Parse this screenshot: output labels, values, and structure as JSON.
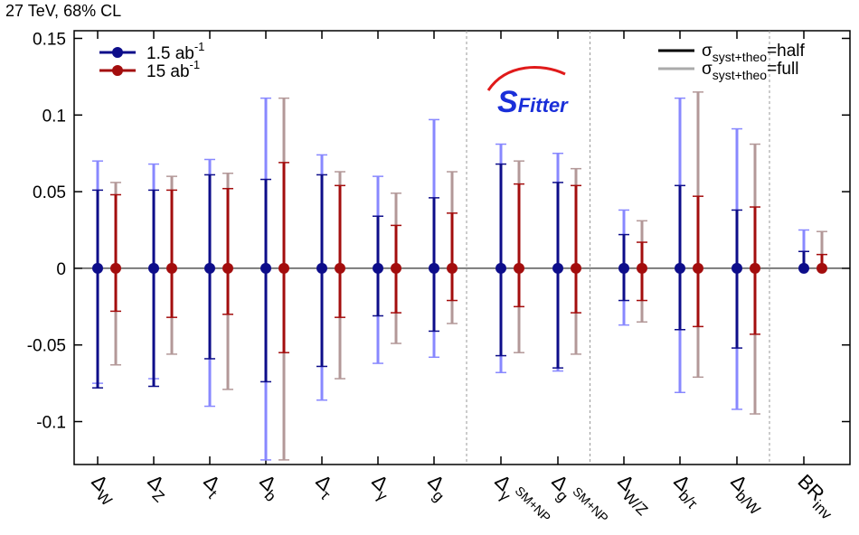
{
  "chart_data": {
    "type": "scatter",
    "subtitle": "27 TeV, 68% CL",
    "logo_text": "SFitter",
    "ylim": [
      -0.128,
      0.155
    ],
    "yticks": [
      0.15,
      0.1,
      0.05,
      0,
      -0.05,
      -0.1
    ],
    "ytick_labels": [
      "0.15",
      "0.1",
      "0.05",
      "0",
      "-0.05",
      "-0.1"
    ],
    "grid": false,
    "zero_line": true,
    "legend_left": [
      {
        "label": "1.5 ab",
        "sup": "-1",
        "color": "#0d0d8a"
      },
      {
        "label": "15 ab",
        "sup": "-1",
        "color": "#a30d0d"
      }
    ],
    "legend_right": [
      {
        "sym": "σ",
        "sub": "syst+theo",
        "rest": "=half",
        "color": "#000000"
      },
      {
        "sym": "σ",
        "sub": "syst+theo",
        "rest": "=full",
        "color": "#aaaaaa"
      }
    ],
    "categories": [
      {
        "label": "Δ",
        "sub": "W",
        "sup": ""
      },
      {
        "label": "Δ",
        "sub": "Z",
        "sup": ""
      },
      {
        "label": "Δ",
        "sub": "t",
        "sup": ""
      },
      {
        "label": "Δ",
        "sub": "b",
        "sup": ""
      },
      {
        "label": "Δ",
        "sub": "τ",
        "sup": ""
      },
      {
        "label": "Δ",
        "sub": "γ",
        "sup": ""
      },
      {
        "label": "Δ",
        "sub": "g",
        "sup": ""
      },
      {
        "label": "Δ",
        "sub": "γ",
        "sup": "SM+NP"
      },
      {
        "label": "Δ",
        "sub": "g",
        "sup": "SM+NP"
      },
      {
        "label": "Δ",
        "sub": "W/Z",
        "sup": ""
      },
      {
        "label": "Δ",
        "sub": "b/τ",
        "sup": ""
      },
      {
        "label": "Δ",
        "sub": "b/W",
        "sup": ""
      },
      {
        "label": "BR",
        "sub": "inv",
        "sup": ""
      }
    ],
    "group_separators_after": [
      6,
      8,
      11
    ],
    "series": [
      {
        "name": "1.5 ab-1",
        "color": "#0d0d8a",
        "full_color": "#8888ff",
        "values": [
          0,
          0,
          0,
          0,
          0,
          0,
          0,
          0,
          0,
          0,
          0,
          0,
          0
        ],
        "half": [
          [
            0.051,
            -0.078
          ],
          [
            0.051,
            -0.077
          ],
          [
            0.061,
            -0.059
          ],
          [
            0.058,
            -0.074
          ],
          [
            0.061,
            -0.064
          ],
          [
            0.034,
            -0.031
          ],
          [
            0.046,
            -0.041
          ],
          [
            0.068,
            -0.057
          ],
          [
            0.056,
            -0.065
          ],
          [
            0.022,
            -0.021
          ],
          [
            0.054,
            -0.04
          ],
          [
            0.038,
            -0.052
          ],
          [
            0.011,
            0
          ]
        ],
        "full": [
          [
            0.07,
            -0.075
          ],
          [
            0.068,
            -0.072
          ],
          [
            0.071,
            -0.09
          ],
          [
            0.111,
            -0.125
          ],
          [
            0.074,
            -0.086
          ],
          [
            0.06,
            -0.062
          ],
          [
            0.097,
            -0.058
          ],
          [
            0.081,
            -0.068
          ],
          [
            0.075,
            -0.067
          ],
          [
            0.038,
            -0.037
          ],
          [
            0.111,
            -0.081
          ],
          [
            0.091,
            -0.092
          ],
          [
            0.025,
            0
          ]
        ]
      },
      {
        "name": "15 ab-1",
        "color": "#a30d0d",
        "full_color": "#b39898",
        "values": [
          0,
          0,
          0,
          0,
          0,
          0,
          0,
          0,
          0,
          0,
          0,
          0,
          0
        ],
        "half": [
          [
            0.048,
            -0.028
          ],
          [
            0.051,
            -0.032
          ],
          [
            0.052,
            -0.03
          ],
          [
            0.069,
            -0.055
          ],
          [
            0.054,
            -0.032
          ],
          [
            0.028,
            -0.029
          ],
          [
            0.036,
            -0.021
          ],
          [
            0.055,
            -0.025
          ],
          [
            0.054,
            -0.029
          ],
          [
            0.017,
            -0.021
          ],
          [
            0.047,
            -0.038
          ],
          [
            0.04,
            -0.043
          ],
          [
            0.009,
            0
          ]
        ],
        "full": [
          [
            0.056,
            -0.063
          ],
          [
            0.06,
            -0.056
          ],
          [
            0.062,
            -0.079
          ],
          [
            0.111,
            -0.125
          ],
          [
            0.063,
            -0.072
          ],
          [
            0.049,
            -0.049
          ],
          [
            0.063,
            -0.036
          ],
          [
            0.07,
            -0.055
          ],
          [
            0.065,
            -0.056
          ],
          [
            0.031,
            -0.035
          ],
          [
            0.115,
            -0.071
          ],
          [
            0.081,
            -0.095
          ],
          [
            0.024,
            0
          ]
        ]
      }
    ]
  }
}
